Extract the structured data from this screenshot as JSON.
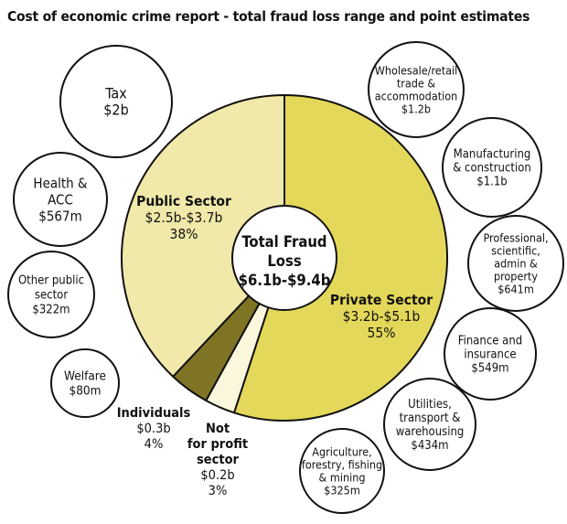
{
  "title": "Cost of economic crime report - total fraud loss range and point estimates",
  "colors": {
    "public": "#f1e9a9",
    "private": "#e4d85a",
    "individuals": "#7f7424",
    "not_for_profit": "#fbf7dd",
    "outline": "#111111",
    "bubble_fill": "#ffffff"
  },
  "chart_data": {
    "type": "pie",
    "center": {
      "lines": [
        "Total Fraud",
        "Loss",
        "$6.1b-$9.4b"
      ]
    },
    "slices": [
      {
        "key": "private",
        "label": "Private Sector",
        "range": "$3.2b-$5.1b",
        "percent_label": "55%",
        "value": 55
      },
      {
        "key": "not_for_profit",
        "label": "Not for profit sector",
        "range": "$0.2b",
        "percent_label": "3%",
        "value": 3
      },
      {
        "key": "individuals",
        "label": "Individuals",
        "range": "$0.3b",
        "percent_label": "4%",
        "value": 4
      },
      {
        "key": "public",
        "label": "Public Sector",
        "range": "$2.5b-$3.7b",
        "percent_label": "38%",
        "value": 38
      }
    ],
    "public_breakdown": [
      {
        "lines": [
          "Tax",
          "$2b"
        ]
      },
      {
        "lines": [
          "Health &",
          "ACC",
          "$567m"
        ]
      },
      {
        "lines": [
          "Other public",
          "sector",
          "$322m"
        ]
      },
      {
        "lines": [
          "Welfare",
          "$80m"
        ]
      }
    ],
    "private_breakdown": [
      {
        "lines": [
          "Wholesale/retail",
          "trade &",
          "accommodation",
          "$1.2b"
        ]
      },
      {
        "lines": [
          "Manufacturing",
          "& construction",
          "$1.1b"
        ]
      },
      {
        "lines": [
          "Professional,",
          "scientific,",
          "admin &",
          "property",
          "$641m"
        ]
      },
      {
        "lines": [
          "Finance and",
          "insurance",
          "$549m"
        ]
      },
      {
        "lines": [
          "Utilities,",
          "transport &",
          "warehousing",
          "$434m"
        ]
      },
      {
        "lines": [
          "Agriculture,",
          "forestry, fishing",
          "& mining",
          "$325m"
        ]
      }
    ]
  }
}
